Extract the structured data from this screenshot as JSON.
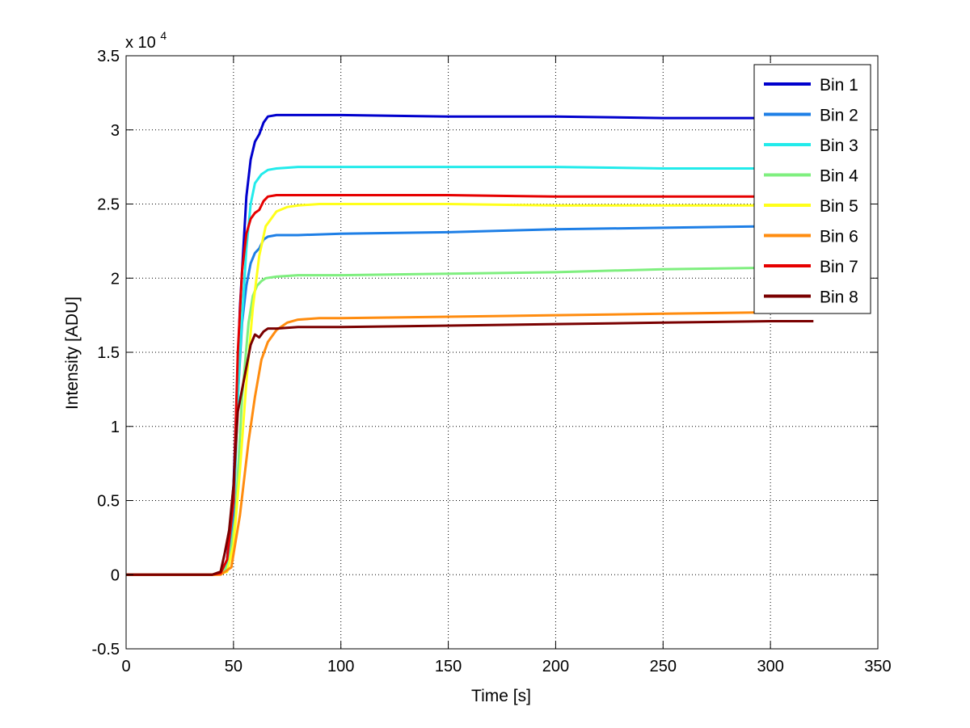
{
  "chart_data": {
    "type": "line",
    "title": "",
    "xlabel": "Time [s]",
    "ylabel": "Intensity [ADU]",
    "xlim": [
      0,
      350
    ],
    "ylim": [
      -0.5,
      3.5
    ],
    "y_exponent_label": "x 10",
    "y_exponent_power": "4",
    "xticks": [
      0,
      50,
      100,
      150,
      200,
      250,
      300,
      350
    ],
    "xtick_labels": [
      "0",
      "50",
      "100",
      "150",
      "200",
      "250",
      "300",
      "350"
    ],
    "yticks": [
      -0.5,
      0,
      0.5,
      1,
      1.5,
      2,
      2.5,
      3,
      3.5
    ],
    "ytick_labels": [
      "-0.5",
      "0",
      "0.5",
      "1",
      "1.5",
      "2",
      "2.5",
      "3",
      "3.5"
    ],
    "grid": true,
    "legend_position": "top-right",
    "series": [
      {
        "name": "Bin 1",
        "color": "#0000cd",
        "x": [
          0,
          40,
          44,
          47,
          50,
          53,
          56,
          58,
          60,
          62,
          64,
          66,
          70,
          80,
          100,
          150,
          200,
          250,
          300,
          320
        ],
        "y": [
          0,
          0,
          0.01,
          0.1,
          0.6,
          1.8,
          2.55,
          2.8,
          2.92,
          2.97,
          3.05,
          3.09,
          3.1,
          3.1,
          3.1,
          3.09,
          3.09,
          3.08,
          3.08,
          3.08
        ]
      },
      {
        "name": "Bin 2",
        "color": "#1e7fe6",
        "x": [
          0,
          40,
          44,
          47,
          50,
          52,
          54,
          56,
          58,
          60,
          62,
          64,
          66,
          70,
          80,
          100,
          150,
          200,
          250,
          300,
          320
        ],
        "y": [
          0,
          0,
          0.01,
          0.06,
          0.4,
          1.2,
          1.7,
          1.95,
          2.1,
          2.17,
          2.2,
          2.26,
          2.28,
          2.29,
          2.29,
          2.3,
          2.31,
          2.33,
          2.34,
          2.35,
          2.35
        ]
      },
      {
        "name": "Bin 3",
        "color": "#22ebeb",
        "x": [
          0,
          40,
          44,
          47,
          50,
          53,
          56,
          58,
          60,
          63,
          66,
          70,
          80,
          100,
          150,
          200,
          250,
          300,
          320
        ],
        "y": [
          0,
          0,
          0.01,
          0.08,
          0.5,
          1.5,
          2.2,
          2.5,
          2.64,
          2.7,
          2.73,
          2.74,
          2.75,
          2.75,
          2.75,
          2.75,
          2.74,
          2.74,
          2.74
        ]
      },
      {
        "name": "Bin 4",
        "color": "#7fef7f",
        "x": [
          0,
          40,
          45,
          48,
          51,
          54,
          57,
          59,
          61,
          63,
          65,
          70,
          80,
          100,
          150,
          200,
          250,
          300,
          320
        ],
        "y": [
          0,
          0,
          0.01,
          0.08,
          0.4,
          1.2,
          1.7,
          1.88,
          1.95,
          1.98,
          2.0,
          2.01,
          2.02,
          2.02,
          2.03,
          2.04,
          2.06,
          2.07,
          2.07
        ]
      },
      {
        "name": "Bin 5",
        "color": "#ffff1a",
        "x": [
          0,
          42,
          47,
          50,
          53,
          56,
          59,
          62,
          65,
          70,
          75,
          80,
          90,
          100,
          150,
          200,
          250,
          300,
          320
        ],
        "y": [
          0,
          0,
          0.02,
          0.2,
          0.7,
          1.3,
          1.8,
          2.15,
          2.35,
          2.45,
          2.48,
          2.49,
          2.5,
          2.5,
          2.5,
          2.49,
          2.49,
          2.49,
          2.49
        ]
      },
      {
        "name": "Bin 6",
        "color": "#ff8c0f",
        "x": [
          0,
          44,
          49,
          53,
          57,
          60,
          63,
          66,
          70,
          75,
          80,
          90,
          100,
          150,
          200,
          250,
          300,
          320
        ],
        "y": [
          0,
          0,
          0.05,
          0.4,
          0.9,
          1.2,
          1.45,
          1.57,
          1.65,
          1.7,
          1.72,
          1.73,
          1.73,
          1.74,
          1.75,
          1.76,
          1.77,
          1.77
        ]
      },
      {
        "name": "Bin 7",
        "color": "#e60000",
        "x": [
          0,
          40,
          44,
          47,
          50,
          52,
          54,
          56,
          58,
          60,
          62,
          64,
          66,
          70,
          80,
          100,
          150,
          200,
          250,
          300,
          320
        ],
        "y": [
          0,
          0,
          0.01,
          0.1,
          0.5,
          1.5,
          2.05,
          2.3,
          2.4,
          2.44,
          2.46,
          2.52,
          2.55,
          2.56,
          2.56,
          2.56,
          2.56,
          2.55,
          2.55,
          2.55,
          2.55
        ]
      },
      {
        "name": "Bin 8",
        "color": "#7a0000",
        "x": [
          0,
          40,
          44,
          46,
          48,
          50,
          52,
          54,
          56,
          58,
          60,
          62,
          64,
          66,
          70,
          80,
          100,
          150,
          200,
          250,
          300,
          320
        ],
        "y": [
          0,
          0,
          0.02,
          0.15,
          0.3,
          0.6,
          1.1,
          1.25,
          1.4,
          1.55,
          1.62,
          1.6,
          1.64,
          1.66,
          1.66,
          1.67,
          1.67,
          1.68,
          1.69,
          1.7,
          1.71,
          1.71
        ]
      }
    ]
  }
}
